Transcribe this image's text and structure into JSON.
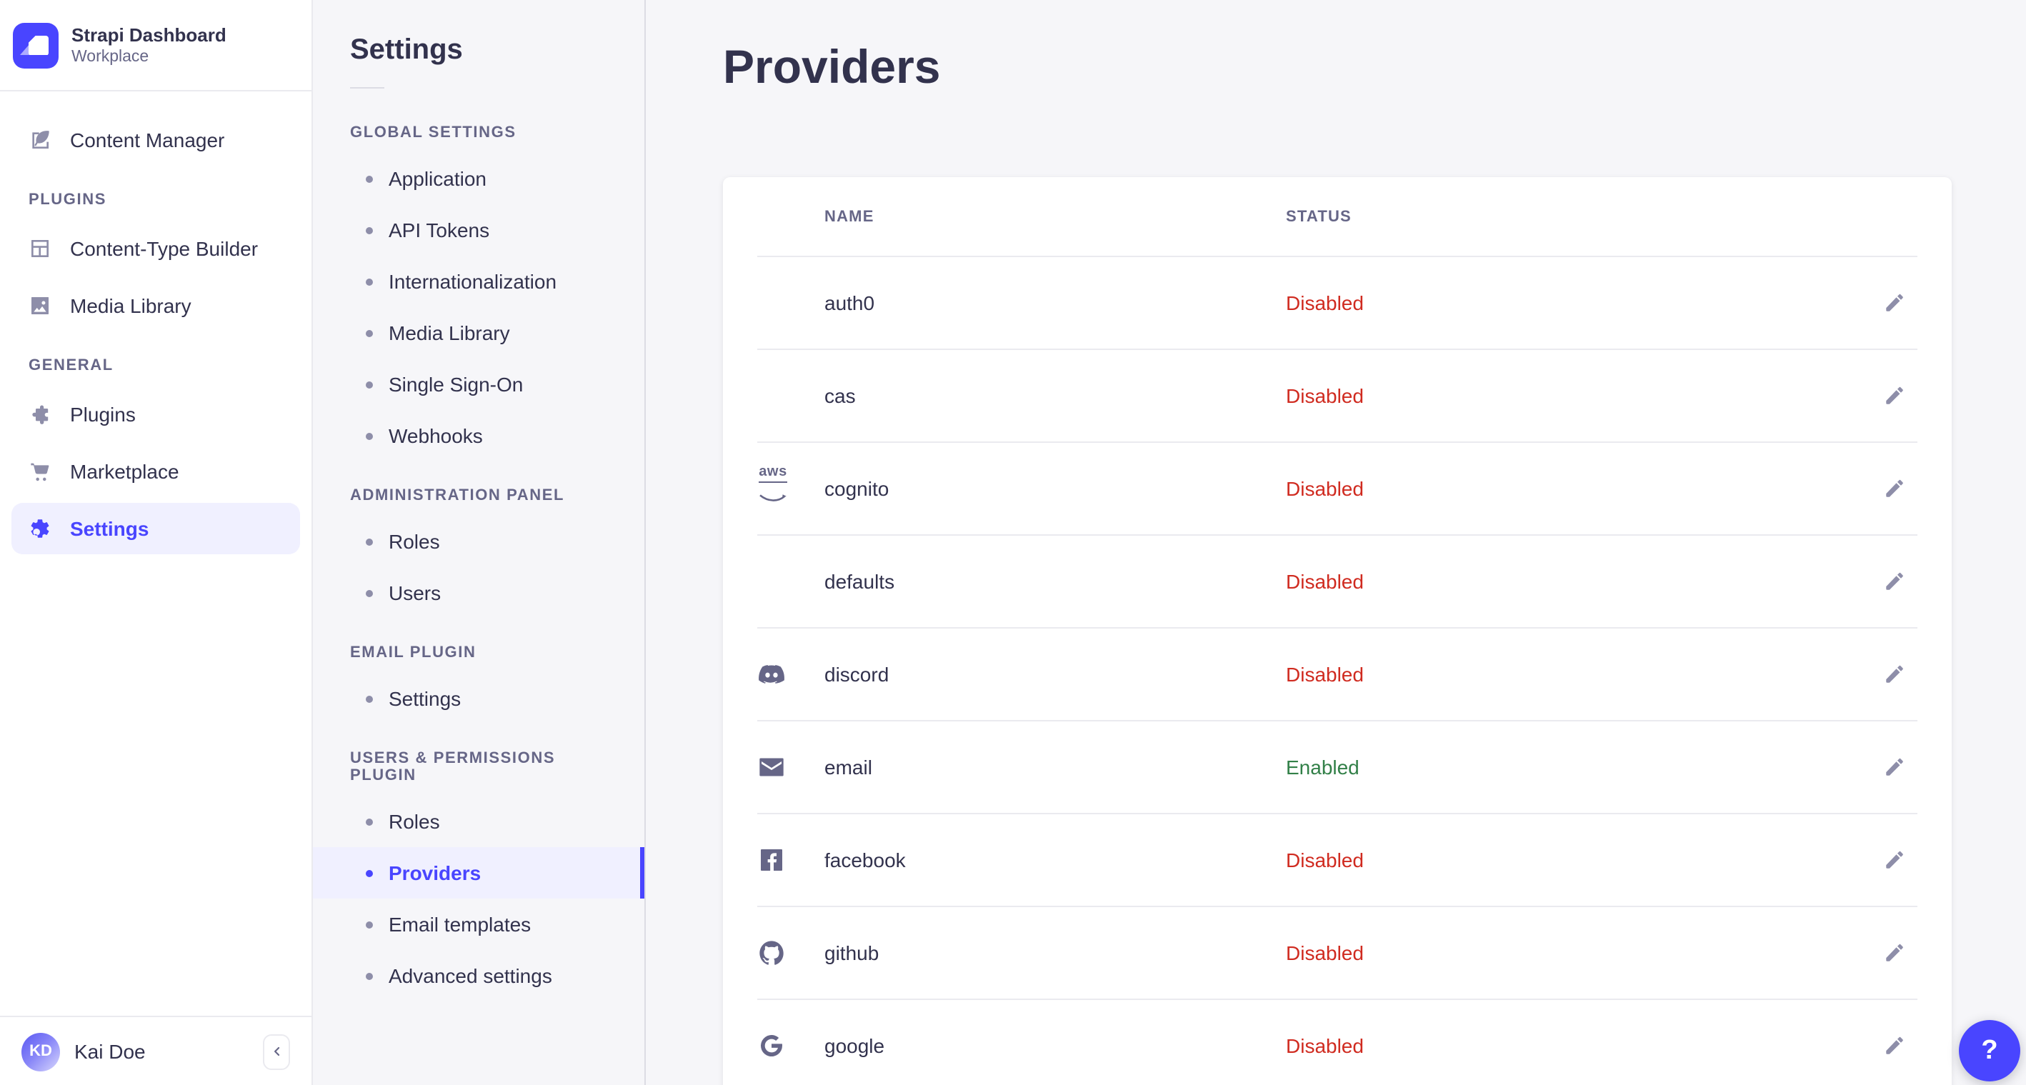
{
  "brand": {
    "title": "Strapi Dashboard",
    "subtitle": "Workplace"
  },
  "left_nav": {
    "main_items": [
      {
        "label": "Content Manager",
        "icon": "feather-icon"
      }
    ],
    "sections": [
      {
        "label": "PLUGINS",
        "items": [
          {
            "label": "Content-Type Builder",
            "icon": "grid-icon"
          },
          {
            "label": "Media Library",
            "icon": "image-icon"
          }
        ]
      },
      {
        "label": "GENERAL",
        "items": [
          {
            "label": "Plugins",
            "icon": "puzzle-icon"
          },
          {
            "label": "Marketplace",
            "icon": "cart-icon"
          },
          {
            "label": "Settings",
            "icon": "gear-icon",
            "active": true
          }
        ]
      }
    ],
    "user": {
      "name": "Kai Doe",
      "initials": "KD"
    }
  },
  "subnav": {
    "title": "Settings",
    "sections": [
      {
        "label": "GLOBAL SETTINGS",
        "items": [
          "Application",
          "API Tokens",
          "Internationalization",
          "Media Library",
          "Single Sign-On",
          "Webhooks"
        ]
      },
      {
        "label": "ADMINISTRATION PANEL",
        "items": [
          "Roles",
          "Users"
        ]
      },
      {
        "label": "EMAIL PLUGIN",
        "items": [
          "Settings"
        ]
      },
      {
        "label": "USERS & PERMISSIONS PLUGIN",
        "items": [
          "Roles",
          "Providers",
          "Email templates",
          "Advanced settings"
        ],
        "active": "Providers"
      }
    ]
  },
  "main": {
    "title": "Providers",
    "table": {
      "columns": [
        "NAME",
        "STATUS"
      ],
      "rows": [
        {
          "name": "auth0",
          "status": "Disabled",
          "icon": null
        },
        {
          "name": "cas",
          "status": "Disabled",
          "icon": null
        },
        {
          "name": "cognito",
          "status": "Disabled",
          "icon": "aws-icon"
        },
        {
          "name": "defaults",
          "status": "Disabled",
          "icon": null
        },
        {
          "name": "discord",
          "status": "Disabled",
          "icon": "discord-icon"
        },
        {
          "name": "email",
          "status": "Enabled",
          "icon": "envelope-icon"
        },
        {
          "name": "facebook",
          "status": "Disabled",
          "icon": "facebook-icon"
        },
        {
          "name": "github",
          "status": "Disabled",
          "icon": "github-icon"
        },
        {
          "name": "google",
          "status": "Disabled",
          "icon": "google-icon"
        }
      ]
    }
  },
  "help": {
    "label": "?"
  },
  "colors": {
    "primary": "#4945ff",
    "active_bg": "#f0f0ff",
    "danger": "#d02b20",
    "success": "#328048",
    "text": "#32324d",
    "muted": "#666687"
  }
}
